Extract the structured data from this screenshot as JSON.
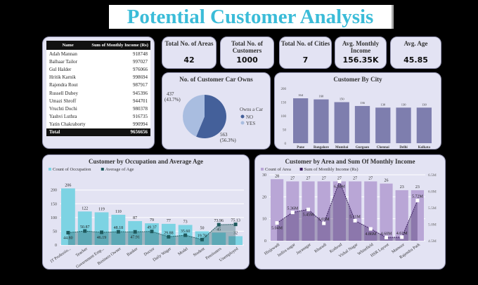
{
  "title": "Potential Customer Analysis",
  "table": {
    "headers": [
      "Name",
      "Sum of Monthly Income (Rs)"
    ],
    "rows": [
      [
        "Adah Mannan",
        "918748"
      ],
      [
        "Balhaar Tailor",
        "997027"
      ],
      [
        "Gul Halder",
        "976066"
      ],
      [
        "Hritik Karnik",
        "998694"
      ],
      [
        "Rajendra Rout",
        "987917"
      ],
      [
        "Russell Dubey",
        "945396"
      ],
      [
        "Umazi    Shroff",
        "944701"
      ],
      [
        "Vruchti Dochi",
        "980378"
      ],
      [
        "Yashvi Luthra",
        "916735"
      ],
      [
        "Yatin Chakraborty",
        "990994"
      ]
    ],
    "total_label": "Total",
    "total_value": "9656656"
  },
  "cards": [
    {
      "label": "Total No. of Areas",
      "value": "42"
    },
    {
      "label": "Total No. of Customers",
      "value": "1000"
    },
    {
      "label": "Total No. of Cities",
      "value": "7"
    },
    {
      "label": "Avg. Monthly Income",
      "value": "156.35K"
    },
    {
      "label": "Avg. Age",
      "value": "45.85"
    }
  ],
  "chart_data": [
    {
      "type": "pie",
      "title": "No. of Customer Car Owns",
      "legend_title": "Owns a Car",
      "slices": [
        {
          "name": "NO",
          "value": 563,
          "label": "563 (56.3%)",
          "color": "#44609a"
        },
        {
          "name": "YES",
          "value": 437,
          "label": "437 (43.7%)",
          "color": "#a9bde0"
        }
      ]
    },
    {
      "type": "bar",
      "title": "Customer By City",
      "categories": [
        "Pune",
        "Bangalore",
        "Mumbai",
        "Gurgaon",
        "Chennai",
        "Delhi",
        "Kolkata"
      ],
      "values": [
        164,
        160,
        150,
        136,
        130,
        130,
        130
      ],
      "ylim": [
        0,
        200
      ],
      "yticks": [
        0,
        50,
        100,
        150,
        200
      ],
      "color": "#7e7eae"
    },
    {
      "type": "bar+line",
      "title": "Customer by Occupation and Average Age",
      "categories": [
        "IT Professio...",
        "Teacher",
        "Government Emp...",
        "Business Owner",
        "Banker",
        "Doctor",
        "Daily Wager",
        "Model",
        "Student",
        "Pensioners",
        "Unemployed"
      ],
      "series": [
        {
          "name": "Count of Occupation",
          "type": "bar",
          "values": [
            206,
            122,
            119,
            110,
            87,
            79,
            77,
            73,
            50,
            45,
            32
          ],
          "color": "#7dd3e3"
        },
        {
          "name": "Average of Age",
          "type": "line",
          "values": [
            44.8,
            50.87,
            46.19,
            48.18,
            47.91,
            49.37,
            29.88,
            35.6,
            19.76,
            73.96,
            75.13
          ],
          "labels": [
            "44.80",
            "50.87",
            "46.19",
            "48.18",
            "47.91",
            "49.37",
            "29.88",
            "35.60",
            "19.76",
            "73.96",
            "75.13"
          ],
          "color": "#1f5a5e"
        }
      ],
      "ylim": [
        0,
        230
      ],
      "yticks": [
        0,
        50,
        100,
        150,
        200
      ]
    },
    {
      "type": "bar+line",
      "title": "Customer by Area and Sum Of Monthly Income",
      "categories": [
        "Hinjewadi",
        "Indira nagar",
        "Jayanagar",
        "Kharadi",
        "Kothrud",
        "Vishal Nagar",
        "Whitefield",
        "HSR Layout",
        "Mamoor",
        "Rajendra Park"
      ],
      "series": [
        {
          "name": "Count of Area",
          "type": "bar",
          "values": [
            28,
            27,
            27,
            27,
            27,
            27,
            27,
            26,
            23,
            23
          ],
          "color": "#b9a6d6"
        },
        {
          "name": "Sum of Monthly Income (Rs)",
          "type": "line",
          "axis": "right",
          "values": [
            5.04,
            5.36,
            5.45,
            5.03,
            6.3,
            5.11,
            4.86,
            4.6,
            4.61,
            5.72
          ],
          "labels": [
            "5.04M",
            "5.36M",
            "5.45M",
            "5.03M",
            "6.30M",
            "5.11M",
            "4.86M",
            "4.60M",
            "4.61M",
            "5.72M"
          ],
          "color": "#3a1f5e"
        }
      ],
      "ylim": [
        0,
        30
      ],
      "yticks": [
        0,
        10,
        20,
        30
      ],
      "y2lim": [
        4.5,
        6.5
      ],
      "y2ticks": [
        "4.5M",
        "5.0M",
        "5.5M",
        "6.0M",
        "6.5M"
      ]
    }
  ]
}
